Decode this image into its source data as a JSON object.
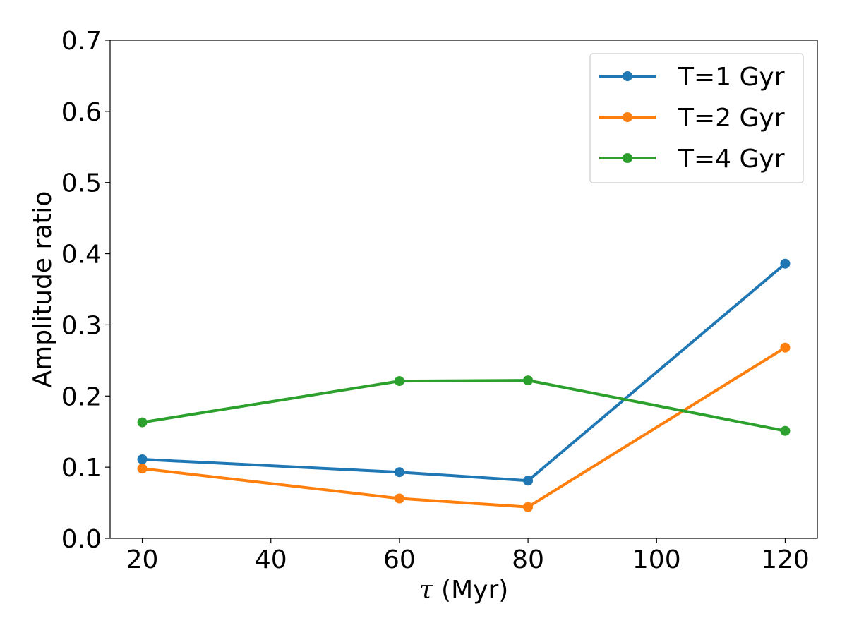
{
  "chart_data": {
    "type": "line",
    "title": "",
    "xlabel_symbol": "τ",
    "xlabel_unit": "(Myr)",
    "ylabel": "Amplitude ratio",
    "x": [
      20,
      60,
      80,
      120
    ],
    "xlim": [
      15,
      125
    ],
    "ylim": [
      0.0,
      0.7
    ],
    "xticks": [
      20,
      40,
      60,
      80,
      100,
      120
    ],
    "xtick_labels": [
      "20",
      "40",
      "60",
      "80",
      "100",
      "120"
    ],
    "yticks": [
      0.0,
      0.1,
      0.2,
      0.3,
      0.4,
      0.5,
      0.6,
      0.7
    ],
    "ytick_labels": [
      "0.0",
      "0.1",
      "0.2",
      "0.3",
      "0.4",
      "0.5",
      "0.6",
      "0.7"
    ],
    "grid": false,
    "legend_position": "top-right",
    "series": [
      {
        "name": "T=1 Gyr",
        "color": "#1f77b4",
        "values": [
          0.111,
          0.093,
          0.081,
          0.386
        ]
      },
      {
        "name": "T=2 Gyr",
        "color": "#ff7f0e",
        "values": [
          0.098,
          0.056,
          0.044,
          0.268
        ]
      },
      {
        "name": "T=4 Gyr",
        "color": "#2ca02c",
        "values": [
          0.163,
          0.221,
          0.222,
          0.151
        ]
      }
    ]
  }
}
